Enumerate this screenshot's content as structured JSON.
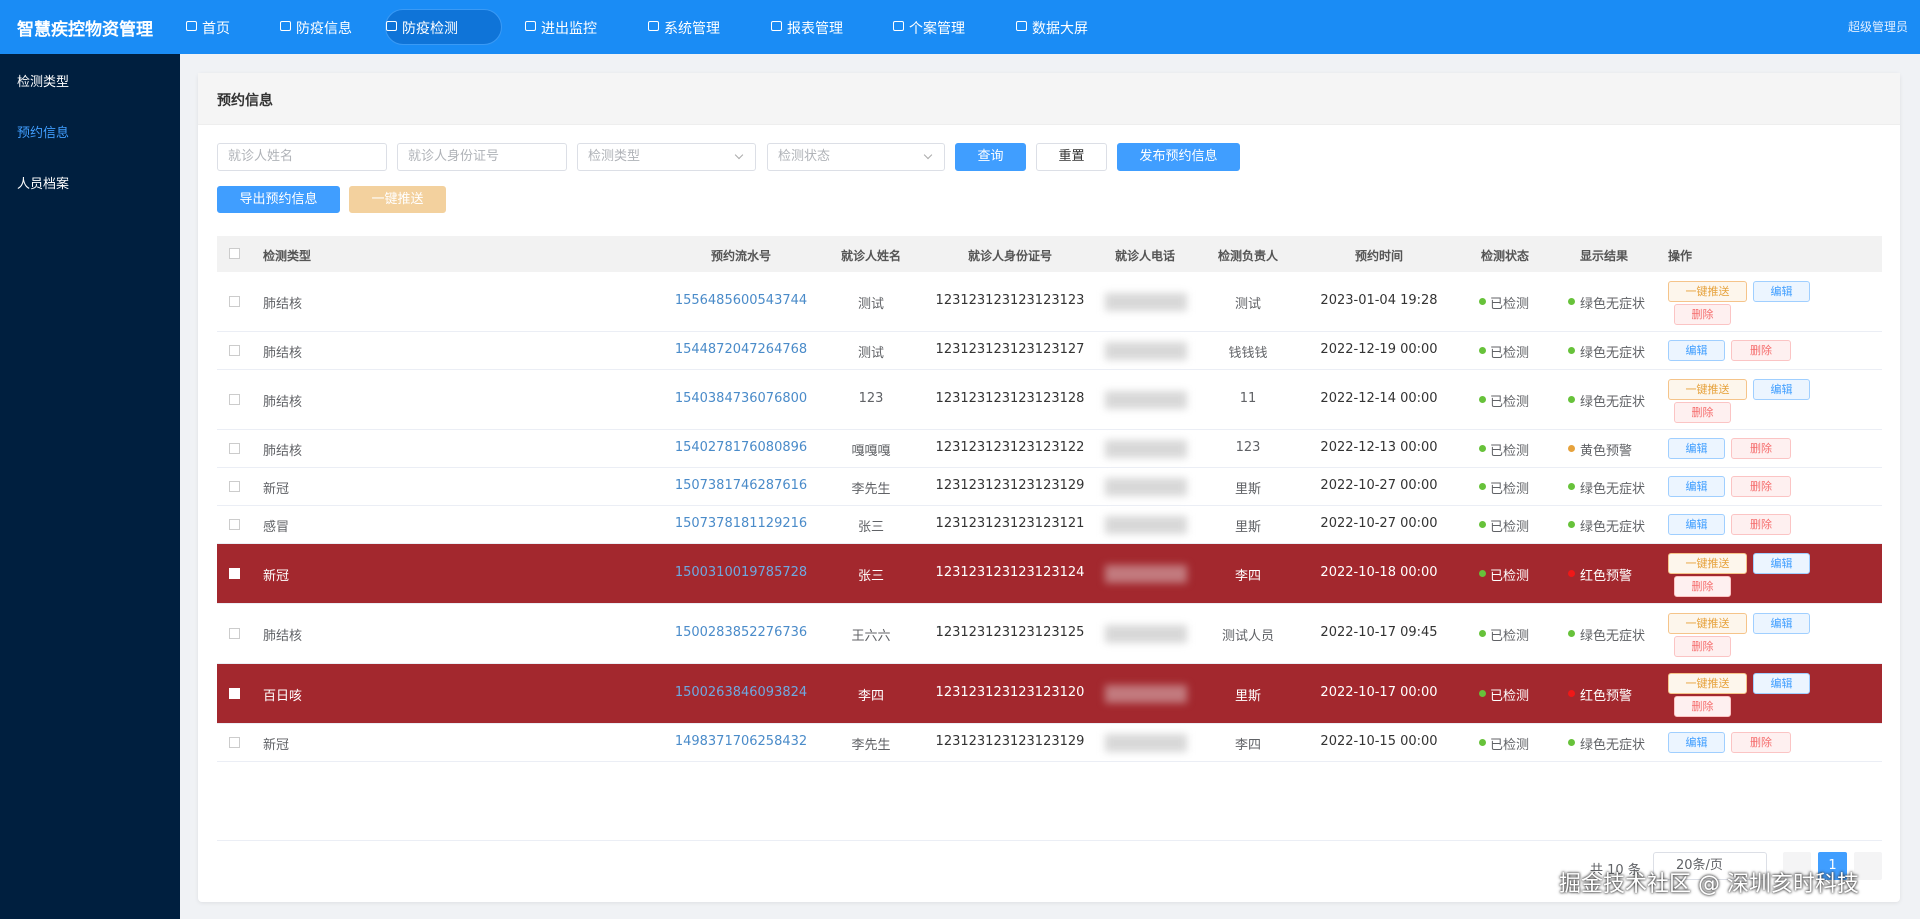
{
  "header": {
    "title": "智慧疾控物资管理",
    "nav": [
      "首页",
      "防疫信息",
      "防疫检测",
      "进出监控",
      "系统管理",
      "报表管理",
      "个案管理",
      "数据大屏"
    ],
    "active_nav": 2,
    "user": "超级管理员"
  },
  "sidebar": {
    "items": [
      "检测类型",
      "预约信息",
      "人员档案"
    ],
    "active": 1
  },
  "card": {
    "title": "预约信息"
  },
  "filters": {
    "placeholders": [
      "就诊人姓名",
      "就诊人身份证号",
      "检测类型",
      "检测状态"
    ],
    "buttons": [
      "查询",
      "重置",
      "发布预约信息"
    ],
    "buttons2": [
      "导出预约信息",
      "一键推送"
    ]
  },
  "table": {
    "columns": [
      "检测类型",
      "预约流水号",
      "就诊人姓名",
      "就诊人身份证号",
      "就诊人电话",
      "检测负责人",
      "预约时间",
      "检测状态",
      "显示结果",
      "操作"
    ],
    "rows": [
      {
        "type": "肺结核",
        "serial": "1556485600543744",
        "name": "测试",
        "id": "123123123123123123",
        "leader": "测试",
        "time": "2023-01-04 19:28",
        "status": "已检测",
        "result": "绿色无症状",
        "result_color": "#67c23a",
        "actions": [
          "一键推送",
          "编辑",
          "删除"
        ],
        "highlight": false
      },
      {
        "type": "肺结核",
        "serial": "1544872047264768",
        "name": "测试",
        "id": "123123123123123127",
        "leader": "钱钱钱",
        "time": "2022-12-19 00:00",
        "status": "已检测",
        "result": "绿色无症状",
        "result_color": "#67c23a",
        "actions": [
          "编辑",
          "删除"
        ],
        "highlight": false
      },
      {
        "type": "肺结核",
        "serial": "1540384736076800",
        "name": "123",
        "id": "123123123123123128",
        "leader": "11",
        "time": "2022-12-14 00:00",
        "status": "已检测",
        "result": "绿色无症状",
        "result_color": "#67c23a",
        "actions": [
          "一键推送",
          "编辑",
          "删除"
        ],
        "highlight": false
      },
      {
        "type": "肺结核",
        "serial": "1540278176080896",
        "name": "嘎嘎嘎",
        "id": "123123123123123122",
        "leader": "123",
        "time": "2022-12-13 00:00",
        "status": "已检测",
        "result": "黄色预警",
        "result_color": "#e6a23c",
        "actions": [
          "编辑",
          "删除"
        ],
        "highlight": false
      },
      {
        "type": "新冠",
        "serial": "1507381746287616",
        "name": "李先生",
        "id": "123123123123123129",
        "leader": "里斯",
        "time": "2022-10-27 00:00",
        "status": "已检测",
        "result": "绿色无症状",
        "result_color": "#67c23a",
        "actions": [
          "编辑",
          "删除"
        ],
        "highlight": false
      },
      {
        "type": "感冒",
        "serial": "1507378181129216",
        "name": "张三",
        "id": "123123123123123121",
        "leader": "里斯",
        "time": "2022-10-27 00:00",
        "status": "已检测",
        "result": "绿色无症状",
        "result_color": "#67c23a",
        "actions": [
          "编辑",
          "删除"
        ],
        "highlight": false
      },
      {
        "type": "新冠",
        "serial": "1500310019785728",
        "name": "张三",
        "id": "123123123123123124",
        "leader": "李四",
        "time": "2022-10-18 00:00",
        "status": "已检测",
        "result": "红色预警",
        "result_color": "#f01818",
        "actions": [
          "一键推送",
          "编辑",
          "删除"
        ],
        "highlight": true
      },
      {
        "type": "肺结核",
        "serial": "1500283852276736",
        "name": "王六六",
        "id": "123123123123123125",
        "leader": "测试人员",
        "time": "2022-10-17 09:45",
        "status": "已检测",
        "result": "绿色无症状",
        "result_color": "#67c23a",
        "actions": [
          "一键推送",
          "编辑",
          "删除"
        ],
        "highlight": false
      },
      {
        "type": "百日咳",
        "serial": "1500263846093824",
        "name": "李四",
        "id": "123123123123123120",
        "leader": "里斯",
        "time": "2022-10-17 00:00",
        "status": "已检测",
        "result": "红色预警",
        "result_color": "#f01818",
        "actions": [
          "一键推送",
          "编辑",
          "删除"
        ],
        "highlight": true
      },
      {
        "type": "新冠",
        "serial": "1498371706258432",
        "name": "李先生",
        "id": "123123123123123129",
        "leader": "李四",
        "time": "2022-10-15 00:00",
        "status": "已检测",
        "result": "绿色无症状",
        "result_color": "#67c23a",
        "actions": [
          "编辑",
          "删除"
        ],
        "highlight": false
      }
    ]
  },
  "pagination": {
    "total": "共 10 条",
    "size": "20条/页",
    "current": 1
  },
  "watermark": "掘金技术社区 @ 深圳亥时科技"
}
